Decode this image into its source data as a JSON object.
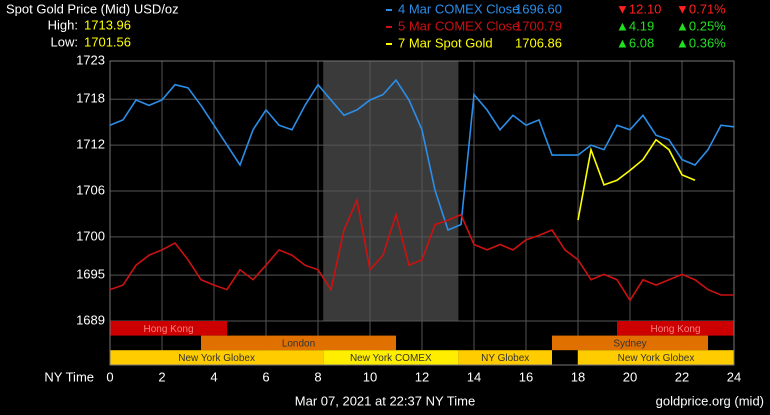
{
  "chart_data": {
    "type": "line",
    "title": "Spot Gold Price (Mid) USD/oz",
    "high_label": "High:",
    "high": "1713.96",
    "low_label": "Low:",
    "low": "1701.56",
    "xlabel": "NY Time",
    "timestamp": "Mar 07, 2021 at 22:37 NY Time",
    "source": "goldprice.org (mid)",
    "xlim": [
      0,
      24
    ],
    "xticks": [
      0,
      2,
      4,
      6,
      8,
      10,
      12,
      14,
      16,
      18,
      20,
      22,
      24
    ],
    "ylim": [
      1689,
      1723
    ],
    "yticks": [
      1689,
      1695,
      1700,
      1706,
      1712,
      1718,
      1723
    ],
    "grid": true,
    "shaded_region": [
      8.2,
      13.4
    ],
    "x": [
      0,
      0.5,
      1,
      1.5,
      2,
      2.5,
      3,
      3.5,
      4,
      4.5,
      5,
      5.5,
      6,
      6.5,
      7,
      7.5,
      8,
      8.5,
      9,
      9.5,
      10,
      10.5,
      11,
      11.5,
      12,
      12.5,
      13,
      13.5,
      14,
      14.5,
      15,
      15.5,
      16,
      16.5,
      17,
      17.5,
      18,
      18.5,
      19,
      19.5,
      20,
      20.5,
      21,
      21.5,
      22,
      22.5,
      23,
      23.5,
      24
    ],
    "series": [
      {
        "name": "4 Mar COMEX Close",
        "color": "#2b8ee8",
        "price": "1696.60",
        "change": "▼12.10",
        "percent": "▼0.71%",
        "values": [
          1714.6,
          1715.3,
          1717.9,
          1717.2,
          1717.9,
          1719.9,
          1719.5,
          1717.2,
          1714.6,
          1712.0,
          1709.4,
          1714.0,
          1716.6,
          1714.6,
          1714.0,
          1717.2,
          1719.9,
          1717.9,
          1715.9,
          1716.6,
          1717.9,
          1718.6,
          1720.5,
          1717.9,
          1714.0,
          1706.1,
          1700.9,
          1701.6,
          1718.6,
          1716.6,
          1714.0,
          1715.9,
          1714.6,
          1715.3,
          1710.7,
          1710.7,
          1710.7,
          1712.0,
          1711.4,
          1714.6,
          1714.0,
          1715.9,
          1713.3,
          1712.7,
          1710.1,
          1709.4,
          1711.4,
          1714.6,
          1714.4
        ]
      },
      {
        "name": "5 Mar COMEX Close",
        "color": "#cc1111",
        "price": "1700.79",
        "change": "▲4.19",
        "percent": "▲0.25%",
        "values": [
          1693.1,
          1693.7,
          1696.3,
          1697.6,
          1698.3,
          1699.2,
          1697.0,
          1694.4,
          1693.7,
          1693.1,
          1695.7,
          1694.4,
          1696.3,
          1698.3,
          1697.6,
          1696.3,
          1695.7,
          1693.1,
          1700.9,
          1704.8,
          1695.7,
          1697.6,
          1702.9,
          1696.3,
          1697.0,
          1701.6,
          1702.2,
          1702.9,
          1699.0,
          1698.3,
          1699.0,
          1698.3,
          1699.6,
          1700.2,
          1700.9,
          1698.3,
          1697.0,
          1694.4,
          1695.1,
          1694.4,
          1691.7,
          1694.4,
          1693.7,
          1694.4,
          1695.1,
          1694.4,
          1693.1,
          1692.4,
          1692.4
        ]
      },
      {
        "name": "7 Mar Spot Gold",
        "color": "#ffff00",
        "price": "1706.86",
        "change": "▲6.08",
        "percent": "▲0.36%",
        "values": [
          null,
          null,
          null,
          null,
          null,
          null,
          null,
          null,
          null,
          null,
          null,
          null,
          null,
          null,
          null,
          null,
          null,
          null,
          null,
          null,
          null,
          null,
          null,
          null,
          null,
          null,
          null,
          null,
          null,
          null,
          null,
          null,
          null,
          null,
          null,
          null,
          1702.2,
          1711.4,
          1706.8,
          1707.4,
          1708.7,
          1710.1,
          1712.7,
          1711.4,
          1708.1,
          1707.4,
          null,
          null,
          null
        ]
      }
    ],
    "session_rows": [
      [
        {
          "label": "Hong Kong",
          "start": 0,
          "end": 4.5,
          "color": "#cc0000"
        },
        {
          "label": "Hong Kong",
          "start": 19.5,
          "end": 24,
          "color": "#cc0000"
        }
      ],
      [
        {
          "label": "London",
          "start": 3.5,
          "end": 11,
          "color": "#e07000"
        },
        {
          "label": "Sydney",
          "start": 17,
          "end": 23,
          "color": "#e07000"
        }
      ],
      [
        {
          "label": "New York Globex",
          "start": 0,
          "end": 8.2,
          "color": "#ffcc00"
        },
        {
          "label": "New York COMEX",
          "start": 8.2,
          "end": 13.4,
          "color": "#ffee00"
        },
        {
          "label": "NY Globex",
          "start": 13.4,
          "end": 17,
          "color": "#ffcc00"
        },
        {
          "label": "New York Globex",
          "start": 18,
          "end": 24,
          "color": "#ffcc00"
        }
      ]
    ]
  }
}
